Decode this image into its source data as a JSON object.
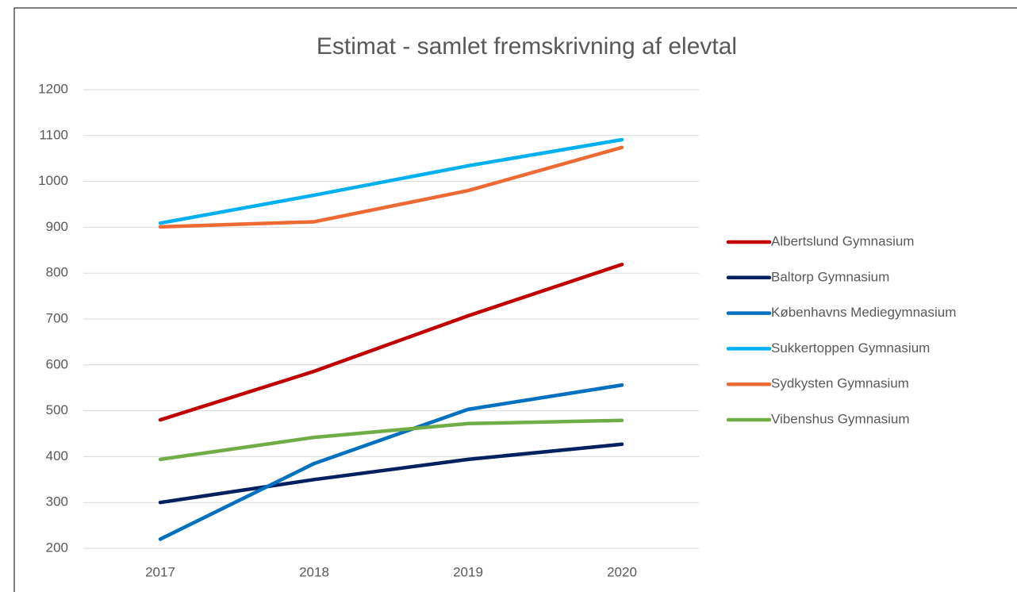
{
  "chart_data": {
    "type": "line",
    "title": "Estimat - samlet fremskrivning af elevtal",
    "categories": [
      "2017",
      "2018",
      "2019",
      "2020"
    ],
    "series": [
      {
        "name": "Albertslund Gymnasium",
        "color": "#c00000",
        "values": [
          480,
          586,
          707,
          819
        ]
      },
      {
        "name": "Baltorp Gymnasium",
        "color": "#002060",
        "values": [
          300,
          350,
          394,
          427
        ]
      },
      {
        "name": "Københavns Mediegymnasium",
        "color": "#0070c0",
        "values": [
          220,
          385,
          503,
          556
        ]
      },
      {
        "name": "Sukkertoppen Gymnasium",
        "color": "#00b0f0",
        "values": [
          909,
          970,
          1034,
          1091
        ]
      },
      {
        "name": "Sydkysten Gymnasium",
        "color": "#ed6a34",
        "values": [
          901,
          912,
          980,
          1074
        ]
      },
      {
        "name": "Vibenshus Gymnasium",
        "color": "#70ad47",
        "values": [
          394,
          442,
          472,
          479
        ]
      }
    ],
    "ylim": [
      200,
      1200
    ],
    "yticks": [
      200,
      300,
      400,
      500,
      600,
      700,
      800,
      900,
      1000,
      1100,
      1200
    ],
    "grid": true,
    "legend": "right"
  }
}
